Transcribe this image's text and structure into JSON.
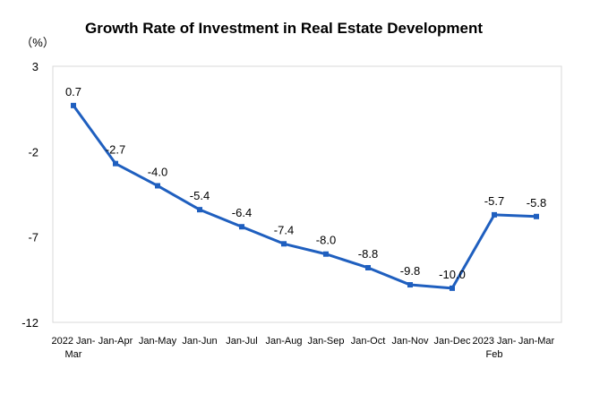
{
  "chart_data": {
    "type": "line",
    "title": "Growth Rate of Investment in Real Estate Development",
    "ylabel": "（%）",
    "xlabel": "",
    "ylim": [
      -12,
      3
    ],
    "yticks": [
      3,
      -2,
      -7,
      -12
    ],
    "grid": false,
    "legend": "none",
    "categories": [
      [
        "2022 Jan-",
        "Mar"
      ],
      [
        "Jan-Apr"
      ],
      [
        "Jan-May"
      ],
      [
        "Jan-Jun"
      ],
      [
        "Jan-Jul"
      ],
      [
        "Jan-Aug"
      ],
      [
        "Jan-Sep"
      ],
      [
        "Jan-Oct"
      ],
      [
        "Jan-Nov"
      ],
      [
        "Jan-Dec"
      ],
      [
        "2023 Jan-",
        "Feb"
      ],
      [
        "Jan-Mar"
      ]
    ],
    "series": [
      {
        "values": [
          0.7,
          -2.7,
          -4.0,
          -5.4,
          -6.4,
          -7.4,
          -8.0,
          -8.8,
          -9.8,
          -10.0,
          -5.7,
          -5.8
        ],
        "labels": [
          "0.7",
          "-2.7",
          "-4.0",
          "-5.4",
          "-6.4",
          "-7.4",
          "-8.0",
          "-8.8",
          "-9.8",
          "-10.0",
          "-5.7",
          "-5.8"
        ]
      }
    ],
    "line_color": "#1f5fbf",
    "axis_color": "#d9d9d9"
  }
}
